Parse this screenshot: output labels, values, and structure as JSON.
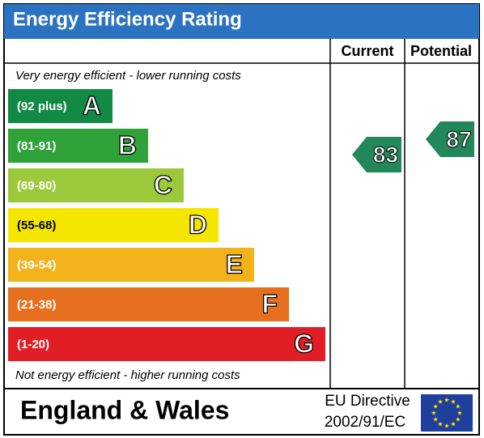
{
  "chart_data": {
    "type": "epc",
    "title": "Energy Efficiency Rating",
    "columns": [
      "Current",
      "Potential"
    ],
    "top_note": "Very energy efficient - lower running costs",
    "bottom_note": "Not energy efficient - higher running costs",
    "bands": [
      {
        "range": "(92 plus)",
        "letter": "A",
        "color": "#108a44"
      },
      {
        "range": "(81-91)",
        "letter": "B",
        "color": "#2fa33a"
      },
      {
        "range": "(69-80)",
        "letter": "C",
        "color": "#9cc93b"
      },
      {
        "range": "(55-68)",
        "letter": "D",
        "color": "#f5e600"
      },
      {
        "range": "(39-54)",
        "letter": "E",
        "color": "#f1b21c"
      },
      {
        "range": "(21-38)",
        "letter": "F",
        "color": "#e7701f"
      },
      {
        "range": "(1-20)",
        "letter": "G",
        "color": "#e11e26"
      }
    ],
    "current": 83,
    "potential": 87,
    "rating_color": "#22875a",
    "footer": "England & Wales",
    "directive": [
      "EU Directive",
      "2002/91/EC"
    ]
  }
}
